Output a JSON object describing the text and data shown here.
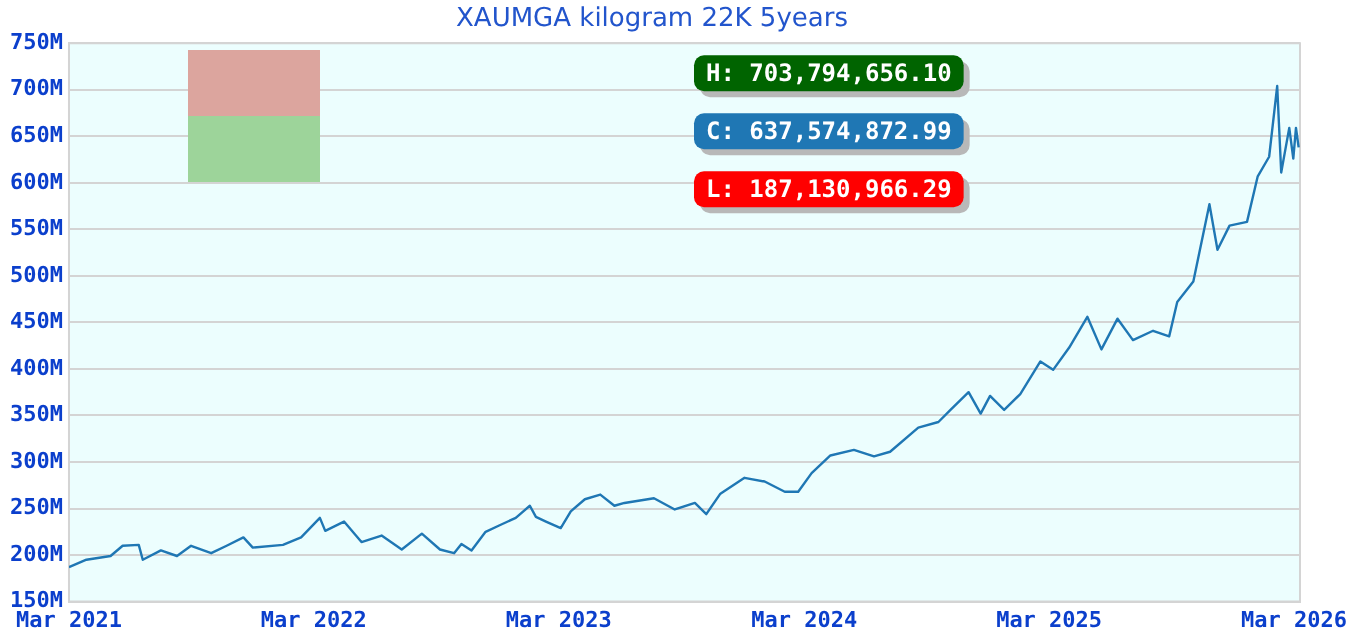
{
  "chart_data": {
    "type": "line",
    "title": "XAUMGA kilogram 22K 5years",
    "x": [
      "2021-03-01",
      "2021-03-27",
      "2021-05-02",
      "2021-05-20",
      "2021-06-13",
      "2021-06-19",
      "2021-07-16",
      "2021-08-09",
      "2021-08-30",
      "2021-09-29",
      "2021-10-22",
      "2021-11-16",
      "2021-11-30",
      "2022-01-14",
      "2022-02-10",
      "2022-03-10",
      "2022-03-18",
      "2022-04-15",
      "2022-05-11",
      "2022-06-10",
      "2022-07-10",
      "2022-08-09",
      "2022-09-05",
      "2022-09-26",
      "2022-10-07",
      "2022-10-22",
      "2022-11-12",
      "2022-12-03",
      "2022-12-27",
      "2023-01-17",
      "2023-01-26",
      "2023-02-10",
      "2023-03-04",
      "2023-03-19",
      "2023-04-09",
      "2023-05-02",
      "2023-05-23",
      "2023-06-07",
      "2023-07-21",
      "2023-08-21",
      "2023-09-20",
      "2023-10-07",
      "2023-10-28",
      "2023-12-03",
      "2024-01-02",
      "2024-02-01",
      "2024-02-21",
      "2024-03-12",
      "2024-04-09",
      "2024-05-14",
      "2024-06-13",
      "2024-07-07",
      "2024-08-18",
      "2024-09-17",
      "2024-10-05",
      "2024-11-01",
      "2024-11-19",
      "2024-12-03",
      "2024-12-24",
      "2025-01-17",
      "2025-02-16",
      "2025-03-07",
      "2025-03-31",
      "2025-04-27",
      "2025-05-18",
      "2025-06-11",
      "2025-07-04",
      "2025-08-03",
      "2025-08-27",
      "2025-09-08",
      "2025-10-02",
      "2025-10-26",
      "2025-11-07",
      "2025-11-25",
      "2025-12-21",
      "2026-01-06",
      "2026-01-23",
      "2026-02-04",
      "2026-02-10",
      "2026-02-22",
      "2026-02-28",
      "2026-03-04",
      "2026-03-08"
    ],
    "series": [
      {
        "color": "#1f77b4",
        "values": [
          187,
          195,
          199,
          210,
          211,
          195,
          205,
          199,
          210,
          202,
          210,
          219,
          208,
          211,
          219,
          240,
          226,
          236,
          214,
          221,
          206,
          223,
          206,
          202,
          212,
          205,
          225,
          232,
          240,
          253,
          241,
          236,
          229,
          247,
          260,
          265,
          253,
          256,
          261,
          249,
          256,
          244,
          266,
          283,
          279,
          268,
          268,
          288,
          307,
          313,
          306,
          311,
          337,
          343,
          356,
          375,
          352,
          371,
          356,
          373,
          408,
          399,
          423,
          456,
          421,
          454,
          431,
          441,
          435,
          472,
          494,
          577,
          528,
          554,
          558,
          607,
          628,
          704,
          611,
          659,
          626,
          659,
          638
        ]
      }
    ],
    "xlim": [
      "2021-03-01",
      "2026-03-10"
    ],
    "xticks": [
      {
        "value": "2021-03",
        "label": "Mar 2021"
      },
      {
        "value": "2022-03",
        "label": "Mar 2022"
      },
      {
        "value": "2023-03",
        "label": "Mar 2023"
      },
      {
        "value": "2024-03",
        "label": "Mar 2024"
      },
      {
        "value": "2025-03",
        "label": "Mar 2025"
      },
      {
        "value": "2026-03",
        "label": "Mar 2026"
      }
    ],
    "ylim": [
      150,
      750
    ],
    "yticks": [
      {
        "value": 150,
        "label": "150M"
      },
      {
        "value": 200,
        "label": "200M"
      },
      {
        "value": 250,
        "label": "250M"
      },
      {
        "value": 300,
        "label": "300M"
      },
      {
        "value": 350,
        "label": "350M"
      },
      {
        "value": 400,
        "label": "400M"
      },
      {
        "value": 450,
        "label": "450M"
      },
      {
        "value": 500,
        "label": "500M"
      },
      {
        "value": 550,
        "label": "550M"
      },
      {
        "value": 600,
        "label": "600M"
      },
      {
        "value": 650,
        "label": "650M"
      },
      {
        "value": 700,
        "label": "700M"
      },
      {
        "value": 750,
        "label": "750M"
      }
    ],
    "annotations": [
      "H: 703,794,656.10",
      "C: 637,574,872.99",
      "L: 187,130,966.29"
    ],
    "grid": "y",
    "legend": false,
    "marker": "none",
    "line_style": "solid"
  }
}
